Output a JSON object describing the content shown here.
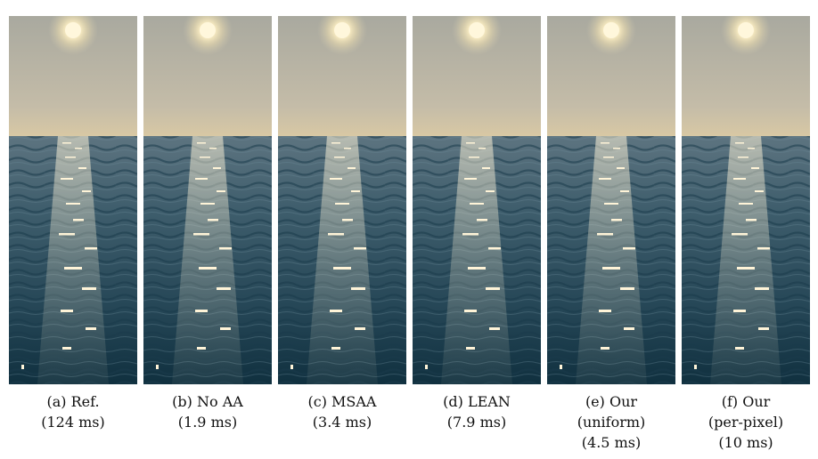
{
  "figure": {
    "panels": [
      {
        "id": "a",
        "caption_lines": [
          "(a) Ref.",
          "(124 ms)"
        ],
        "glint_style": "sharp"
      },
      {
        "id": "b",
        "caption_lines": [
          "(b) No AA",
          "(1.9 ms)"
        ],
        "glint_style": "sparse"
      },
      {
        "id": "c",
        "caption_lines": [
          "(c) MSAA",
          "(3.4 ms)"
        ],
        "glint_style": "sparse"
      },
      {
        "id": "d",
        "caption_lines": [
          "(d) LEAN",
          "(7.9 ms)"
        ],
        "glint_style": "blurred"
      },
      {
        "id": "e",
        "caption_lines": [
          "(e) Our",
          "(uniform)",
          "(4.5 ms)"
        ],
        "glint_style": "smooth"
      },
      {
        "id": "f",
        "caption_lines": [
          "(f) Our",
          "(per-pixel)",
          "(10 ms)"
        ],
        "glint_style": "sharp"
      }
    ],
    "colors": {
      "sky_top": "#a9a99f",
      "sky_horizon": "#d8c8a4",
      "sea_far": "#5d7480",
      "sea_mid": "#2f4f60",
      "sea_near": "#10303f",
      "sun": "#fff7dc",
      "glint": "#fff4d8"
    }
  }
}
